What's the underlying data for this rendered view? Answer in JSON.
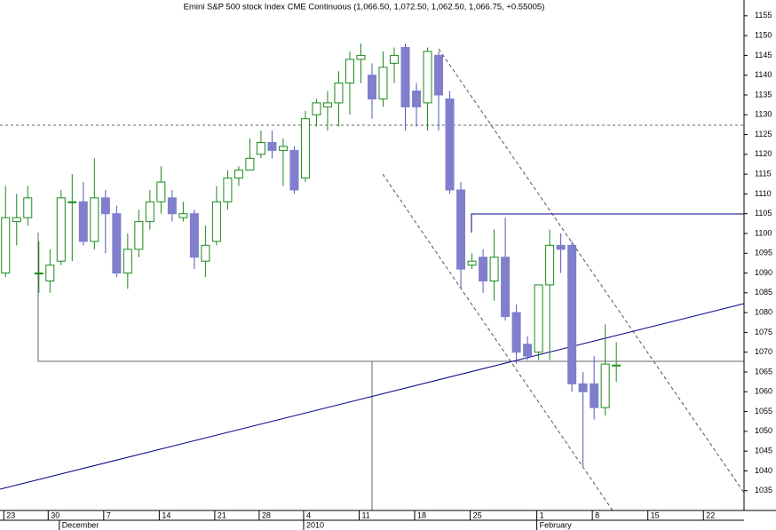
{
  "chart_data": {
    "type": "candlestick",
    "title": "Emini S&P 500 stock Index CME Continuous (1,066.50, 1,072.50, 1,062.50, 1,066.75, +0.55005)",
    "categories": [
      "23",
      null,
      null,
      null,
      "30",
      null,
      null,
      null,
      null,
      "7",
      null,
      null,
      null,
      null,
      "14",
      null,
      null,
      null,
      null,
      "21",
      null,
      null,
      null,
      "28",
      null,
      null,
      null,
      "4",
      null,
      null,
      null,
      null,
      "11",
      null,
      null,
      null,
      null,
      "18",
      null,
      null,
      null,
      null,
      "25",
      null,
      null,
      null,
      null,
      null,
      "1",
      null,
      null,
      null,
      null,
      "8",
      null,
      null,
      null,
      null,
      "15",
      null,
      null,
      null,
      null,
      "22",
      null,
      null,
      null
    ],
    "months": [
      null,
      null,
      null,
      null,
      null,
      "December",
      null,
      null,
      null,
      null,
      null,
      null,
      null,
      null,
      null,
      null,
      null,
      null,
      null,
      null,
      null,
      null,
      null,
      null,
      null,
      null,
      null,
      "2010",
      null,
      null,
      null,
      null,
      null,
      null,
      null,
      null,
      null,
      null,
      null,
      null,
      null,
      null,
      null,
      null,
      null,
      null,
      null,
      null,
      "February",
      null,
      null,
      null,
      null,
      null,
      null,
      null,
      null,
      null,
      null,
      null,
      null,
      null,
      null,
      null,
      null,
      null,
      null
    ],
    "open": [
      1090,
      1103,
      1104,
      1090,
      1088,
      1093,
      1108,
      1108,
      1098,
      1109,
      1105,
      1090,
      1096,
      1103,
      1108,
      1109,
      1104,
      1105,
      1093,
      1098,
      1108,
      1114,
      1116,
      1120,
      1123,
      1121,
      1121,
      1114,
      1130,
      1132,
      1133,
      1138,
      1144,
      1140,
      1134,
      1143,
      1147,
      1136,
      1133,
      1145,
      1134,
      1111,
      1092,
      1094,
      1088,
      1094,
      1080,
      1072,
      1070,
      1087,
      1097,
      1097,
      1062,
      1062,
      1056,
      1066.5,
      null,
      null,
      null,
      null,
      null,
      null,
      null,
      null,
      null,
      null,
      null
    ],
    "high": [
      1112,
      1110,
      1112,
      1098,
      1096,
      1111,
      1115,
      1113,
      1119,
      1111,
      1107,
      1100,
      1106,
      1111,
      1117,
      1111,
      1108,
      1106,
      1102,
      1112,
      1116,
      1117,
      1124,
      1126,
      1126,
      1124,
      1122,
      1131,
      1134,
      1136,
      1141,
      1146,
      1148,
      1143,
      1146,
      1147,
      1148,
      1138,
      1147,
      1146,
      1136,
      1113,
      1095,
      1096,
      1101,
      1104,
      1082,
      1074,
      1087,
      1101,
      1100,
      1098,
      1065,
      1069,
      1077,
      1072.5,
      null,
      null,
      null,
      null,
      null,
      null,
      null,
      null,
      null,
      null,
      null
    ],
    "low": [
      1089,
      1097,
      1102,
      1085,
      1085,
      1092,
      1093,
      1097,
      1096,
      1095,
      1089,
      1086,
      1094,
      1101,
      1105,
      1103,
      1103,
      1091,
      1089,
      1097,
      1106,
      1112,
      1116,
      1119,
      1119,
      1112,
      1110,
      1113,
      1127,
      1126,
      1127,
      1130,
      1138,
      1129,
      1132,
      1138,
      1126,
      1127,
      1126,
      1126,
      1110,
      1086,
      1091,
      1085,
      1083,
      1078,
      1067,
      1068,
      1068,
      1068,
      1090,
      1060,
      1041,
      1053,
      1054,
      1062.5,
      null,
      null,
      null,
      null,
      null,
      null,
      null,
      null,
      null,
      null,
      null
    ],
    "close": [
      1104,
      1104,
      1109,
      1090,
      1092,
      1109,
      1108,
      1098,
      1109,
      1105,
      1090,
      1096,
      1103,
      1108,
      1113,
      1105,
      1105,
      1094,
      1097,
      1108,
      1114,
      1116,
      1119,
      1123,
      1121,
      1122,
      1111,
      1129,
      1133,
      1133,
      1138,
      1144,
      1145,
      1134,
      1142,
      1145,
      1132,
      1132,
      1146,
      1135,
      1111,
      1091,
      1093,
      1088,
      1094,
      1079,
      1070,
      1069,
      1087,
      1097,
      1096,
      1062,
      1060,
      1056,
      1067,
      1066.75,
      null,
      null,
      null,
      null,
      null,
      null,
      null,
      null,
      null,
      null,
      null
    ],
    "up_color": "#1a8a1a",
    "down_color": "#7f7fcc",
    "ylim": [
      1030,
      1159
    ],
    "yticks": [
      1035,
      1040,
      1045,
      1050,
      1055,
      1060,
      1065,
      1070,
      1075,
      1080,
      1085,
      1090,
      1095,
      1100,
      1105,
      1110,
      1115,
      1120,
      1125,
      1130,
      1135,
      1140,
      1145,
      1150,
      1155
    ]
  }
}
